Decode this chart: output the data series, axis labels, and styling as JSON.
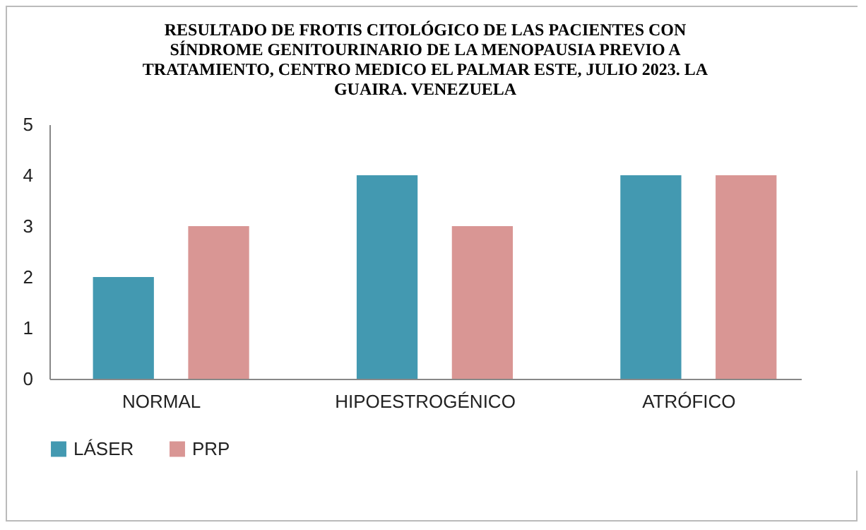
{
  "chart_data": {
    "type": "bar",
    "title": "RESULTADO DE FROTIS CITOLÓGICO DE LAS PACIENTES CON SÍNDROME GENITOURINARIO DE LA MENOPAUSIA PREVIO A TRATAMIENTO, CENTRO MEDICO EL PALMAR ESTE, JULIO 2023. LA GUAIRA.  VENEZUELA",
    "categories": [
      "NORMAL",
      "HIPOESTROGÉNICO",
      "ATRÓFICO"
    ],
    "series": [
      {
        "name": "LÁSER",
        "color": "#4399b1",
        "values": [
          2,
          4,
          4
        ]
      },
      {
        "name": "PRP",
        "color": "#d99694",
        "values": [
          3,
          3,
          4
        ]
      }
    ],
    "ylim": [
      0,
      5
    ],
    "yticks": [
      0,
      1,
      2,
      3,
      4,
      5
    ],
    "grid": false,
    "legend": "bottom"
  }
}
